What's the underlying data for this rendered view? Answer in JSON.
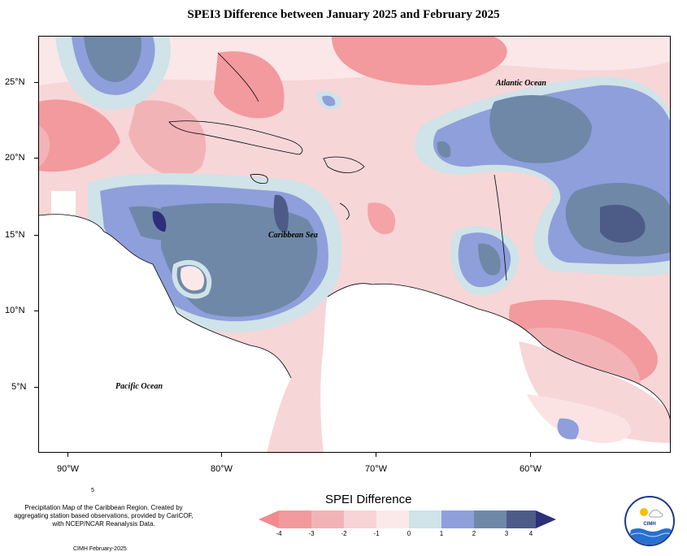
{
  "title": "SPEI3 Difference between January 2025 and February 2025",
  "axes": {
    "lat_labels": [
      "25°N",
      "20°N",
      "15°N",
      "10°N",
      "5°N"
    ],
    "lon_labels": [
      "90°W",
      "80°W",
      "70°W",
      "60°W"
    ]
  },
  "labels": {
    "atlantic": "Atlantic Ocean",
    "caribbean": "Caribbean Sea",
    "pacific": "Pacific Ocean"
  },
  "footer": {
    "number": "5",
    "note": "Precipitation Map of the Caribbean Region. Created by aggregating station based observations, provided by CariCOF, with NCEP/NCAR Reanalysis Data.",
    "credit": "CIMH February-2025",
    "logo_text": "CIMH"
  },
  "legend": {
    "title": "SPEI Difference",
    "ticks": [
      "-4",
      "-3",
      "-2",
      "-1",
      "0",
      "1",
      "2",
      "3",
      "4"
    ],
    "colors": [
      "#f28a8f",
      "#f2b3b6",
      "#f8d3d6",
      "#fbe9ea",
      "#cfe3e8",
      "#8e9fdb",
      "#6f88a8",
      "#4d5c86",
      "#2c2f7a"
    ]
  }
}
